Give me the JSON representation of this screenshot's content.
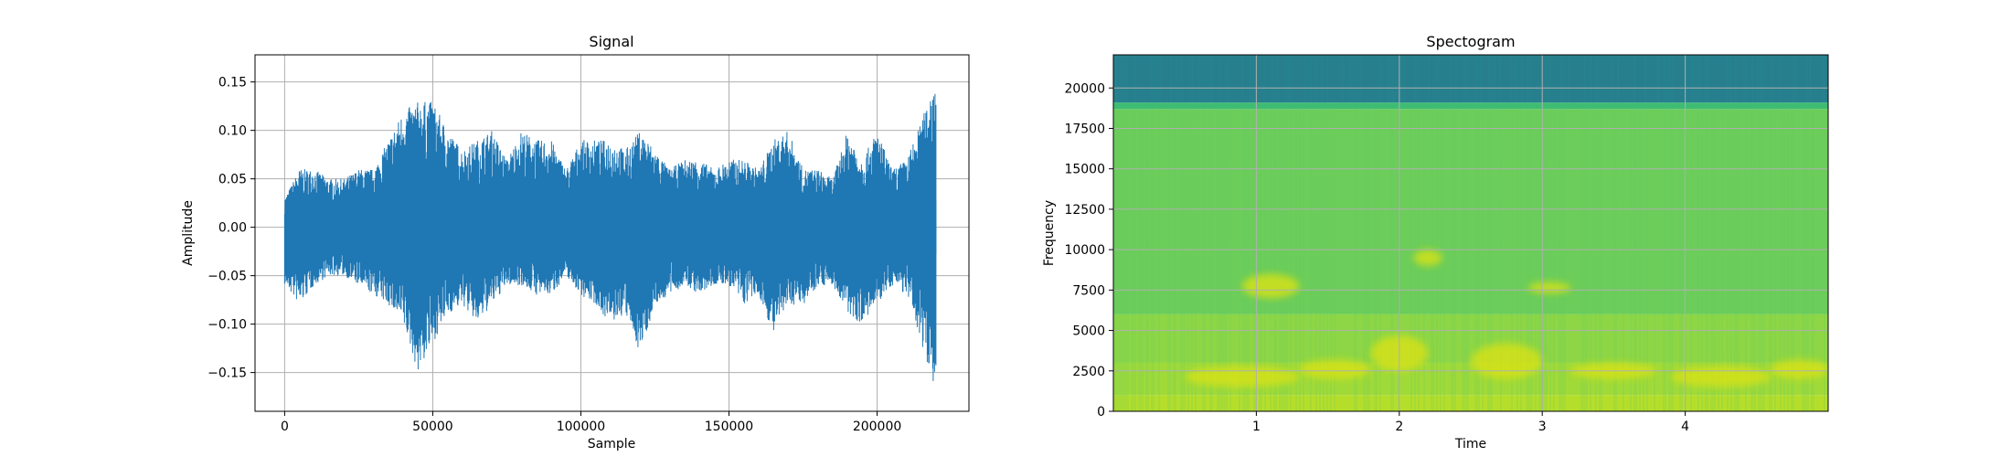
{
  "chart_data": [
    {
      "type": "line",
      "title": "Signal",
      "xlabel": "Sample",
      "ylabel": "Amplitude",
      "xlim": [
        -10000,
        231000
      ],
      "ylim": [
        -0.19,
        0.178
      ],
      "xticks": [
        0,
        50000,
        100000,
        150000,
        200000
      ],
      "xtick_labels": [
        "0",
        "50000",
        "100000",
        "150000",
        "200000"
      ],
      "yticks": [
        0.15,
        0.1,
        0.05,
        0.0,
        -0.05,
        -0.1,
        -0.15
      ],
      "ytick_labels": [
        "0.15",
        "0.10",
        "0.05",
        "0.00",
        "−0.05",
        "−0.10",
        "−0.15"
      ],
      "grid": true,
      "color": "#1f77b4",
      "series": [
        {
          "x": [
            0,
            5000,
            10000,
            15000,
            20000,
            25000,
            30000,
            35000,
            40000,
            45000,
            50000,
            55000,
            60000,
            65000,
            70000,
            75000,
            80000,
            85000,
            90000,
            95000,
            100000,
            105000,
            110000,
            115000,
            120000,
            125000,
            130000,
            135000,
            140000,
            145000,
            150000,
            155000,
            160000,
            165000,
            170000,
            175000,
            180000,
            185000,
            190000,
            195000,
            200000,
            205000,
            210000,
            215000,
            220000
          ],
          "upper": [
            0.03,
            0.06,
            0.06,
            0.05,
            0.05,
            0.06,
            0.06,
            0.09,
            0.12,
            0.13,
            0.13,
            0.1,
            0.08,
            0.09,
            0.1,
            0.07,
            0.1,
            0.09,
            0.09,
            0.06,
            0.09,
            0.09,
            0.09,
            0.08,
            0.1,
            0.08,
            0.06,
            0.07,
            0.07,
            0.06,
            0.07,
            0.07,
            0.06,
            0.09,
            0.1,
            0.06,
            0.06,
            0.05,
            0.1,
            0.07,
            0.1,
            0.06,
            0.07,
            0.11,
            0.16
          ],
          "lower": [
            -0.06,
            -0.08,
            -0.06,
            -0.05,
            -0.05,
            -0.06,
            -0.07,
            -0.08,
            -0.1,
            -0.15,
            -0.12,
            -0.09,
            -0.08,
            -0.1,
            -0.08,
            -0.06,
            -0.06,
            -0.07,
            -0.07,
            -0.05,
            -0.07,
            -0.08,
            -0.1,
            -0.09,
            -0.13,
            -0.08,
            -0.07,
            -0.06,
            -0.07,
            -0.06,
            -0.06,
            -0.08,
            -0.07,
            -0.11,
            -0.08,
            -0.08,
            -0.06,
            -0.06,
            -0.09,
            -0.1,
            -0.08,
            -0.06,
            -0.07,
            -0.12,
            -0.17
          ]
        }
      ]
    },
    {
      "type": "heatmap",
      "title": "Spectogram",
      "xlabel": "Time",
      "ylabel": "Frequency",
      "xlim": [
        0,
        5
      ],
      "ylim": [
        0,
        22050
      ],
      "xticks": [
        1,
        2,
        3,
        4
      ],
      "xtick_labels": [
        "1",
        "2",
        "3",
        "4"
      ],
      "yticks": [
        0,
        2500,
        5000,
        7500,
        10000,
        12500,
        15000,
        17500,
        20000
      ],
      "ytick_labels": [
        "0",
        "2500",
        "5000",
        "7500",
        "10000",
        "12500",
        "15000",
        "17500",
        "20000"
      ],
      "grid": true,
      "colormap": "viridis",
      "bands": [
        {
          "from": 0,
          "to": 1000,
          "color": "#b5de2b"
        },
        {
          "from": 1000,
          "to": 3000,
          "color": "#a0da39"
        },
        {
          "from": 3000,
          "to": 6000,
          "color": "#8ed645"
        },
        {
          "from": 6000,
          "to": 18700,
          "color": "#6ccd5a"
        },
        {
          "from": 18700,
          "to": 19100,
          "color": "#3fbc73"
        },
        {
          "from": 19100,
          "to": 22050,
          "color": "#277f8e"
        }
      ],
      "highlights": [
        {
          "t": [
            0.5,
            1.3
          ],
          "f": [
            1500,
            2800
          ]
        },
        {
          "t": [
            1.3,
            1.8
          ],
          "f": [
            2000,
            3200
          ]
        },
        {
          "t": [
            1.8,
            2.2
          ],
          "f": [
            2500,
            4700
          ]
        },
        {
          "t": [
            2.5,
            3.0
          ],
          "f": [
            2000,
            4200
          ]
        },
        {
          "t": [
            3.2,
            3.8
          ],
          "f": [
            2000,
            3000
          ]
        },
        {
          "t": [
            3.9,
            4.6
          ],
          "f": [
            1500,
            2800
          ]
        },
        {
          "t": [
            4.6,
            5.0
          ],
          "f": [
            2000,
            3200
          ]
        },
        {
          "t": [
            0.9,
            1.3
          ],
          "f": [
            7000,
            8500
          ]
        },
        {
          "t": [
            2.1,
            2.3
          ],
          "f": [
            9000,
            10000
          ]
        },
        {
          "t": [
            2.9,
            3.2
          ],
          "f": [
            7300,
            8000
          ]
        }
      ]
    }
  ]
}
